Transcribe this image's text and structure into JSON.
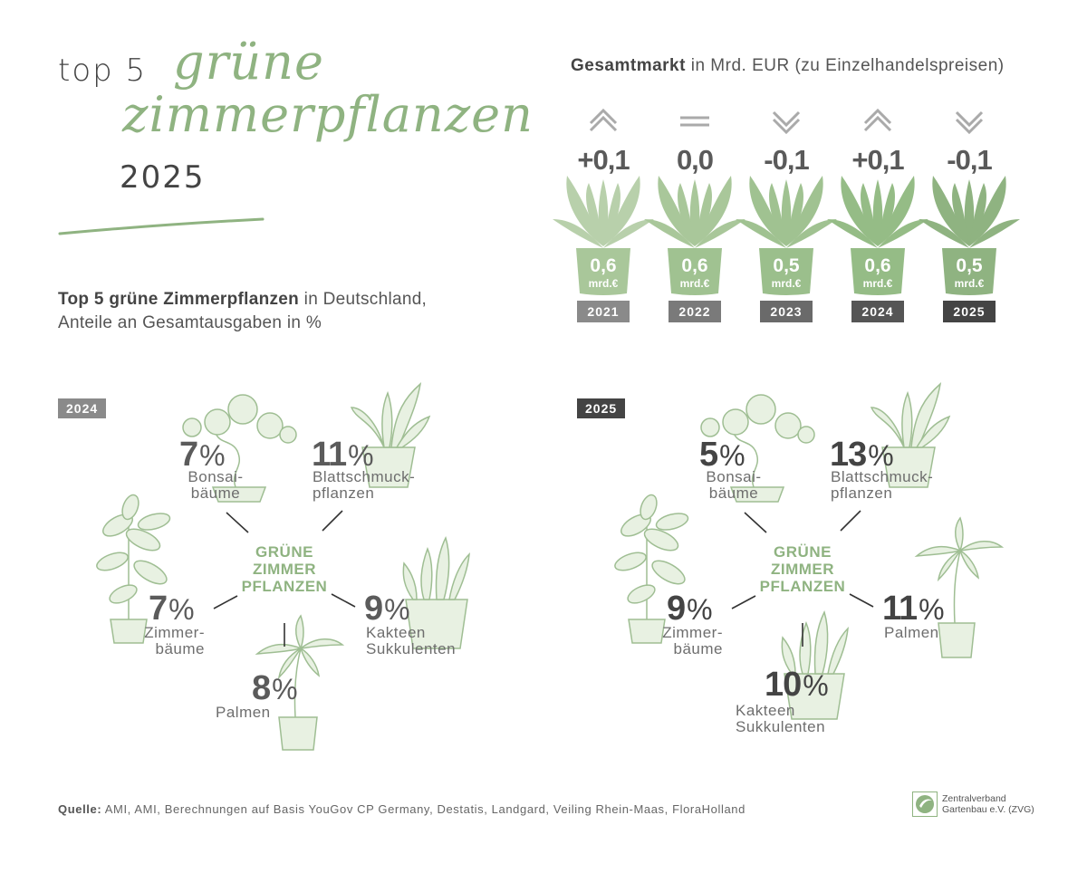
{
  "header": {
    "prefix": "top 5",
    "script_line1": "grüne",
    "script_line2": "zimmerpflanzen",
    "year": "2025"
  },
  "market": {
    "title_bold": "Gesamtmarkt",
    "title_rest": " in Mrd. EUR (zu Einzelhandelspreisen)"
  },
  "share": {
    "title_bold": "Top 5 grüne Zimmerpflanzen",
    "title_rest": " in Deutschland,",
    "title_line2": "Anteile an Gesamtausgaben in %"
  },
  "panels": {
    "p2024": {
      "year": "2024",
      "center": [
        "GRÜNE",
        "ZIMMER",
        "PFLANZEN"
      ],
      "items": [
        {
          "pct": "7",
          "label1": "Bonsai-",
          "label2": "bäume"
        },
        {
          "pct": "11",
          "label1": "Blattschmuck-",
          "label2": "pflanzen"
        },
        {
          "pct": "7",
          "label1": "Zimmer-",
          "label2": "bäume"
        },
        {
          "pct": "9",
          "label1": "Kakteen",
          "label2": "Sukkulenten"
        },
        {
          "pct": "8",
          "label1": "Palmen",
          "label2": ""
        }
      ]
    },
    "p2025": {
      "year": "2025",
      "center": [
        "GRÜNE",
        "ZIMMER",
        "PFLANZEN"
      ],
      "items": [
        {
          "pct": "5",
          "label1": "Bonsai-",
          "label2": "bäume"
        },
        {
          "pct": "13",
          "label1": "Blattschmuck-",
          "label2": "pflanzen"
        },
        {
          "pct": "9",
          "label1": "Zimmer-",
          "label2": "bäume"
        },
        {
          "pct": "11",
          "label1": "Palmen",
          "label2": ""
        },
        {
          "pct": "10",
          "label1": "Kakteen",
          "label2": "Sukkulenten"
        }
      ]
    }
  },
  "source": {
    "label": "Quelle:",
    "text": " AMI, AMI, Berechnungen auf Basis YouGov CP Germany, Destatis, Landgard, Veiling Rhein-Maas, FloraHolland"
  },
  "logo": {
    "line1": "Zentralverband",
    "line2": "Gartenbau e.V. (ZVG)"
  },
  "colors": {
    "green": "#8fb381",
    "green_light": "#b9d3ac",
    "dark": "#444444",
    "grey": "#8a8a8a"
  },
  "chart_data": [
    {
      "type": "bar",
      "title": "Gesamtmarkt in Mrd. EUR (zu Einzelhandelspreisen)",
      "categories": [
        "2021",
        "2022",
        "2023",
        "2024",
        "2025"
      ],
      "values": [
        0.6,
        0.6,
        0.5,
        0.6,
        0.5
      ],
      "value_labels": [
        "0,6",
        "0,6",
        "0,5",
        "0,6",
        "0,5"
      ],
      "unit": "mrd.€",
      "changes": [
        "+0,1",
        "0,0",
        "-0,1",
        "+0,1",
        "-0,1"
      ],
      "trend": [
        "up",
        "flat",
        "down",
        "up",
        "down"
      ]
    },
    {
      "type": "pie",
      "title": "2024",
      "categories": [
        "Bonsaibäume",
        "Blattschmuckpflanzen",
        "Zimmerbäume",
        "Kakteen Sukkulenten",
        "Palmen"
      ],
      "values": [
        7,
        11,
        7,
        9,
        8
      ],
      "unit": "%"
    },
    {
      "type": "pie",
      "title": "2025",
      "categories": [
        "Bonsaibäume",
        "Blattschmuckpflanzen",
        "Zimmerbäume",
        "Palmen",
        "Kakteen Sukkulenten"
      ],
      "values": [
        5,
        13,
        9,
        11,
        10
      ],
      "unit": "%"
    }
  ]
}
